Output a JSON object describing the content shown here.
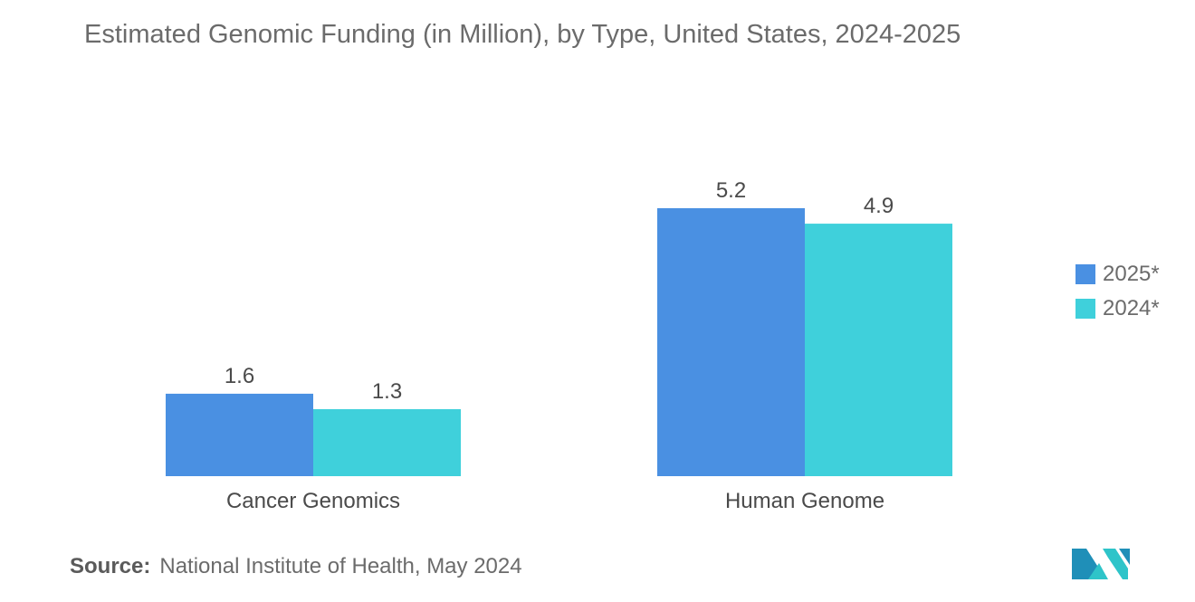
{
  "chart_data": {
    "type": "bar",
    "title": "Estimated Genomic Funding (in Million), by Type, United States, 2024-2025",
    "categories": [
      "Cancer Genomics",
      "Human Genome"
    ],
    "series": [
      {
        "name": "2025*",
        "values": [
          1.6,
          5.2
        ],
        "color": "#4a90e2"
      },
      {
        "name": "2024*",
        "values": [
          1.3,
          4.9
        ],
        "color": "#3fd0db"
      }
    ],
    "xlabel": "",
    "ylabel": "",
    "ylim": [
      0,
      5.2
    ],
    "grid": false,
    "legend_position": "right"
  },
  "source": {
    "label": "Source:",
    "text": "National Institute of Health, May 2024"
  },
  "logo": {
    "icon": "mordor-intelligence-logo",
    "colors": [
      "#1f8fb8",
      "#2ec4c9"
    ]
  }
}
